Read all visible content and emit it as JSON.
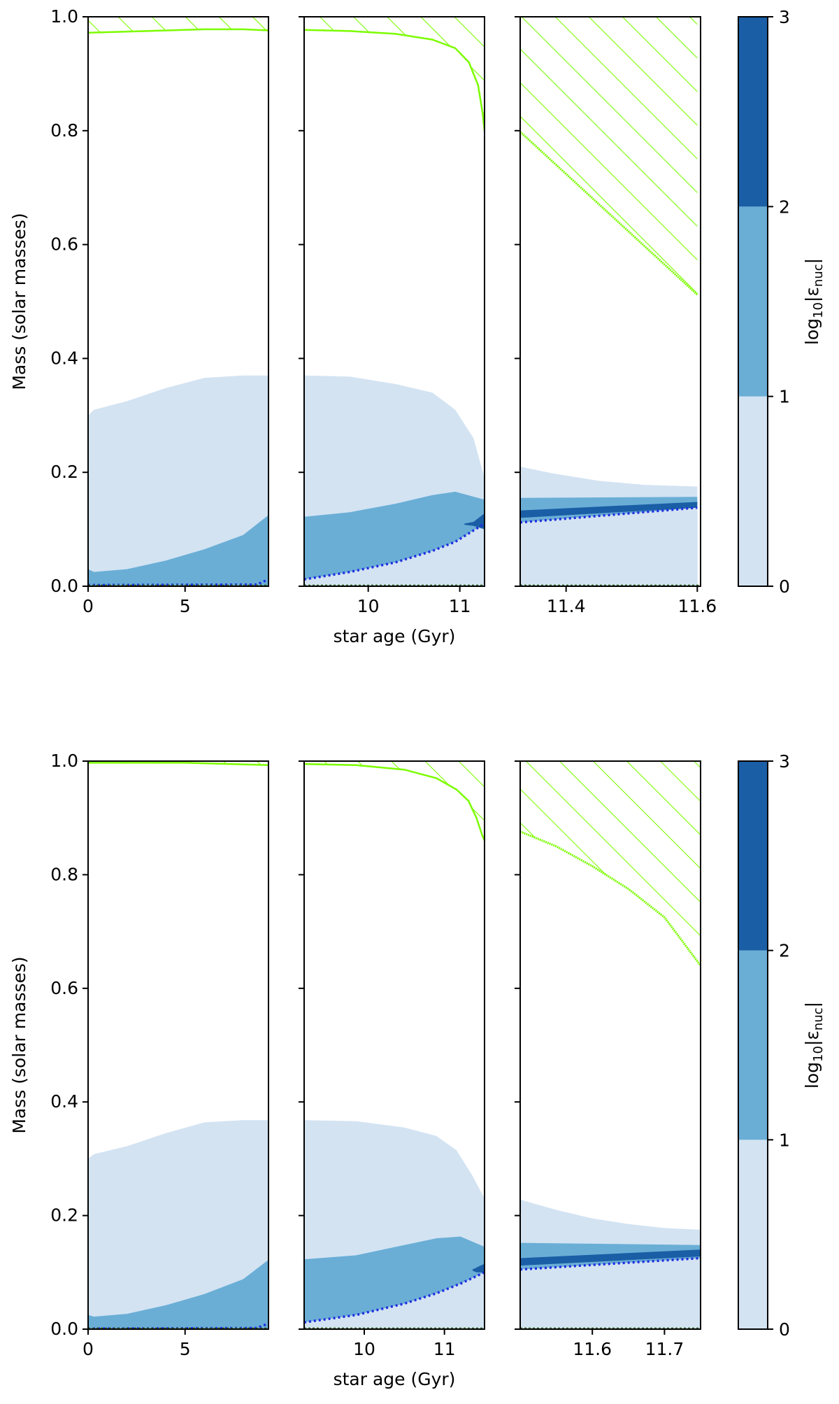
{
  "colors": {
    "l1": "#d3e3f2",
    "l2": "#6aaed6",
    "l3": "#1a5ea6",
    "hatch": "#7cfc00",
    "burn": "#1f2ee0",
    "axis": "#000000"
  },
  "chart_data": [
    {
      "type": "area",
      "title": "",
      "ylabel": "Mass (solar masses)",
      "xlabel": "star age (Gyr)",
      "ylim": [
        0,
        1
      ],
      "yticks": [
        {
          "v": 0.0,
          "label": "0.0"
        },
        {
          "v": 0.2,
          "label": "0.2"
        },
        {
          "v": 0.4,
          "label": "0.4"
        },
        {
          "v": 0.6,
          "label": "0.6"
        },
        {
          "v": 0.8,
          "label": "0.8"
        },
        {
          "v": 1.0,
          "label": "1.0"
        }
      ],
      "colorbar": {
        "label_prefix": "log",
        "label_sub": "10",
        "label_mid": "|ε",
        "label_sub2": "nuc",
        "label_suffix": "|",
        "levels": [
          {
            "v": 0,
            "label": "0"
          },
          {
            "v": 1,
            "label": "1"
          },
          {
            "v": 2,
            "label": "2"
          },
          {
            "v": 3,
            "label": "3"
          }
        ]
      },
      "panels": [
        {
          "xlim": [
            0,
            9.3
          ],
          "xticks": [
            {
              "v": 0,
              "label": "0"
            },
            {
              "v": 5,
              "label": "5"
            }
          ],
          "hatch_boundary": [
            [
              0,
              0.972
            ],
            [
              3,
              0.975
            ],
            [
              6,
              0.978
            ],
            [
              8,
              0.978
            ],
            [
              9.3,
              0.976
            ]
          ],
          "level1_top": [
            [
              0,
              0.3
            ],
            [
              0.3,
              0.31
            ],
            [
              2,
              0.325
            ],
            [
              4,
              0.348
            ],
            [
              6,
              0.366
            ],
            [
              8,
              0.37
            ],
            [
              9.3,
              0.37
            ]
          ],
          "level2_top": [
            [
              0,
              0.03
            ],
            [
              0.3,
              0.025
            ],
            [
              2,
              0.03
            ],
            [
              4,
              0.045
            ],
            [
              6,
              0.065
            ],
            [
              8,
              0.09
            ],
            [
              9.3,
              0.125
            ]
          ],
          "level3": [],
          "burn_line": [
            [
              0,
              0.002
            ],
            [
              8.7,
              0.003
            ],
            [
              9.3,
              0.012
            ]
          ]
        },
        {
          "xlim": [
            9.3,
            11.27
          ],
          "xticks": [
            {
              "v": 10,
              "label": "10"
            },
            {
              "v": 11,
              "label": "11"
            }
          ],
          "hatch_boundary": [
            [
              9.3,
              0.977
            ],
            [
              9.8,
              0.975
            ],
            [
              10.3,
              0.97
            ],
            [
              10.7,
              0.96
            ],
            [
              10.95,
              0.945
            ],
            [
              11.1,
              0.92
            ],
            [
              11.2,
              0.88
            ],
            [
              11.25,
              0.83
            ],
            [
              11.27,
              0.8
            ]
          ],
          "level1_top": [
            [
              9.3,
              0.37
            ],
            [
              9.8,
              0.368
            ],
            [
              10.3,
              0.355
            ],
            [
              10.7,
              0.34
            ],
            [
              10.95,
              0.31
            ],
            [
              11.15,
              0.26
            ],
            [
              11.27,
              0.19
            ]
          ],
          "level2_top": [
            [
              9.3,
              0.122
            ],
            [
              9.8,
              0.13
            ],
            [
              10.3,
              0.145
            ],
            [
              10.7,
              0.16
            ],
            [
              10.95,
              0.166
            ],
            [
              11.27,
              0.152
            ]
          ],
          "level3": [
            [
              11.05,
              0.11
            ],
            [
              11.15,
              0.113
            ],
            [
              11.27,
              0.128
            ],
            [
              11.27,
              0.1
            ],
            [
              11.15,
              0.106
            ],
            [
              11.05,
              0.108
            ]
          ],
          "burn_line": [
            [
              9.3,
              0.012
            ],
            [
              9.8,
              0.025
            ],
            [
              10.3,
              0.042
            ],
            [
              10.7,
              0.062
            ],
            [
              10.95,
              0.078
            ],
            [
              11.27,
              0.11
            ]
          ]
        },
        {
          "xlim": [
            11.33,
            11.605
          ],
          "xticks": [
            {
              "v": 11.4,
              "label": "11.4"
            },
            {
              "v": 11.6,
              "label": "11.6"
            }
          ],
          "hatch_boundary": [
            [
              11.33,
              0.798
            ],
            [
              11.6,
              0.512
            ]
          ],
          "level1_top": [
            [
              11.33,
              0.21
            ],
            [
              11.38,
              0.198
            ],
            [
              11.45,
              0.185
            ],
            [
              11.52,
              0.178
            ],
            [
              11.6,
              0.175
            ]
          ],
          "level2_top": [
            [
              11.33,
              0.155
            ],
            [
              11.6,
              0.157
            ]
          ],
          "level3": [
            [
              11.33,
              0.133
            ],
            [
              11.6,
              0.148
            ],
            [
              11.6,
              0.138
            ],
            [
              11.33,
              0.12
            ]
          ],
          "burn_line": [
            [
              11.33,
              0.112
            ],
            [
              11.6,
              0.138
            ]
          ]
        }
      ]
    },
    {
      "type": "area",
      "title": "",
      "ylabel": "Mass (solar masses)",
      "xlabel": "star age (Gyr)",
      "ylim": [
        0,
        1
      ],
      "yticks": [
        {
          "v": 0.0,
          "label": "0.0"
        },
        {
          "v": 0.2,
          "label": "0.2"
        },
        {
          "v": 0.4,
          "label": "0.4"
        },
        {
          "v": 0.6,
          "label": "0.6"
        },
        {
          "v": 0.8,
          "label": "0.8"
        },
        {
          "v": 1.0,
          "label": "1.0"
        }
      ],
      "colorbar": {
        "label_prefix": "log",
        "label_sub": "10",
        "label_mid": "|ε",
        "label_sub2": "nuc",
        "label_suffix": "|",
        "levels": [
          {
            "v": 0,
            "label": "0"
          },
          {
            "v": 1,
            "label": "1"
          },
          {
            "v": 2,
            "label": "2"
          },
          {
            "v": 3,
            "label": "3"
          }
        ]
      },
      "panels": [
        {
          "xlim": [
            0,
            9.3
          ],
          "xticks": [
            {
              "v": 0,
              "label": "0"
            },
            {
              "v": 5,
              "label": "5"
            }
          ],
          "hatch_boundary": [
            [
              0,
              0.997
            ],
            [
              5,
              0.997
            ],
            [
              9.3,
              0.993
            ]
          ],
          "level1_top": [
            [
              0,
              0.3
            ],
            [
              0.3,
              0.308
            ],
            [
              2,
              0.322
            ],
            [
              4,
              0.345
            ],
            [
              6,
              0.364
            ],
            [
              8,
              0.368
            ],
            [
              9.3,
              0.368
            ]
          ],
          "level2_top": [
            [
              0,
              0.025
            ],
            [
              0.3,
              0.022
            ],
            [
              2,
              0.027
            ],
            [
              4,
              0.042
            ],
            [
              6,
              0.062
            ],
            [
              8,
              0.088
            ],
            [
              9.3,
              0.122
            ]
          ],
          "level3": [],
          "burn_line": [
            [
              0,
              0.001
            ],
            [
              8.7,
              0.002
            ],
            [
              9.3,
              0.01
            ]
          ]
        },
        {
          "xlim": [
            9.25,
            11.5
          ],
          "xticks": [
            {
              "v": 10,
              "label": "10"
            },
            {
              "v": 11,
              "label": "11"
            }
          ],
          "hatch_boundary": [
            [
              9.25,
              0.995
            ],
            [
              9.9,
              0.993
            ],
            [
              10.5,
              0.985
            ],
            [
              10.9,
              0.97
            ],
            [
              11.15,
              0.95
            ],
            [
              11.3,
              0.93
            ],
            [
              11.4,
              0.9
            ],
            [
              11.47,
              0.87
            ],
            [
              11.5,
              0.86
            ]
          ],
          "level1_top": [
            [
              9.25,
              0.368
            ],
            [
              9.9,
              0.366
            ],
            [
              10.5,
              0.355
            ],
            [
              10.9,
              0.34
            ],
            [
              11.15,
              0.315
            ],
            [
              11.35,
              0.27
            ],
            [
              11.5,
              0.23
            ]
          ],
          "level2_top": [
            [
              9.25,
              0.123
            ],
            [
              9.9,
              0.13
            ],
            [
              10.5,
              0.148
            ],
            [
              10.9,
              0.16
            ],
            [
              11.2,
              0.163
            ],
            [
              11.5,
              0.145
            ]
          ],
          "level3": [
            [
              11.35,
              0.105
            ],
            [
              11.45,
              0.112
            ],
            [
              11.5,
              0.115
            ],
            [
              11.5,
              0.1
            ],
            [
              11.4,
              0.1
            ],
            [
              11.35,
              0.103
            ]
          ],
          "burn_line": [
            [
              9.25,
              0.012
            ],
            [
              9.9,
              0.025
            ],
            [
              10.5,
              0.045
            ],
            [
              10.9,
              0.063
            ],
            [
              11.2,
              0.08
            ],
            [
              11.5,
              0.1
            ]
          ]
        },
        {
          "xlim": [
            11.5,
            11.75
          ],
          "xticks": [
            {
              "v": 11.6,
              "label": "11.6"
            },
            {
              "v": 11.7,
              "label": "11.7"
            }
          ],
          "hatch_boundary": [
            [
              11.5,
              0.876
            ],
            [
              11.55,
              0.85
            ],
            [
              11.6,
              0.815
            ],
            [
              11.65,
              0.775
            ],
            [
              11.7,
              0.725
            ],
            [
              11.75,
              0.64
            ]
          ],
          "level1_top": [
            [
              11.5,
              0.228
            ],
            [
              11.55,
              0.21
            ],
            [
              11.6,
              0.195
            ],
            [
              11.65,
              0.185
            ],
            [
              11.7,
              0.178
            ],
            [
              11.75,
              0.175
            ]
          ],
          "level2_top": [
            [
              11.5,
              0.152
            ],
            [
              11.75,
              0.148
            ]
          ],
          "level3": [
            [
              11.5,
              0.125
            ],
            [
              11.75,
              0.14
            ],
            [
              11.75,
              0.128
            ],
            [
              11.5,
              0.112
            ]
          ],
          "burn_line": [
            [
              11.5,
              0.105
            ],
            [
              11.75,
              0.125
            ]
          ]
        }
      ]
    }
  ]
}
